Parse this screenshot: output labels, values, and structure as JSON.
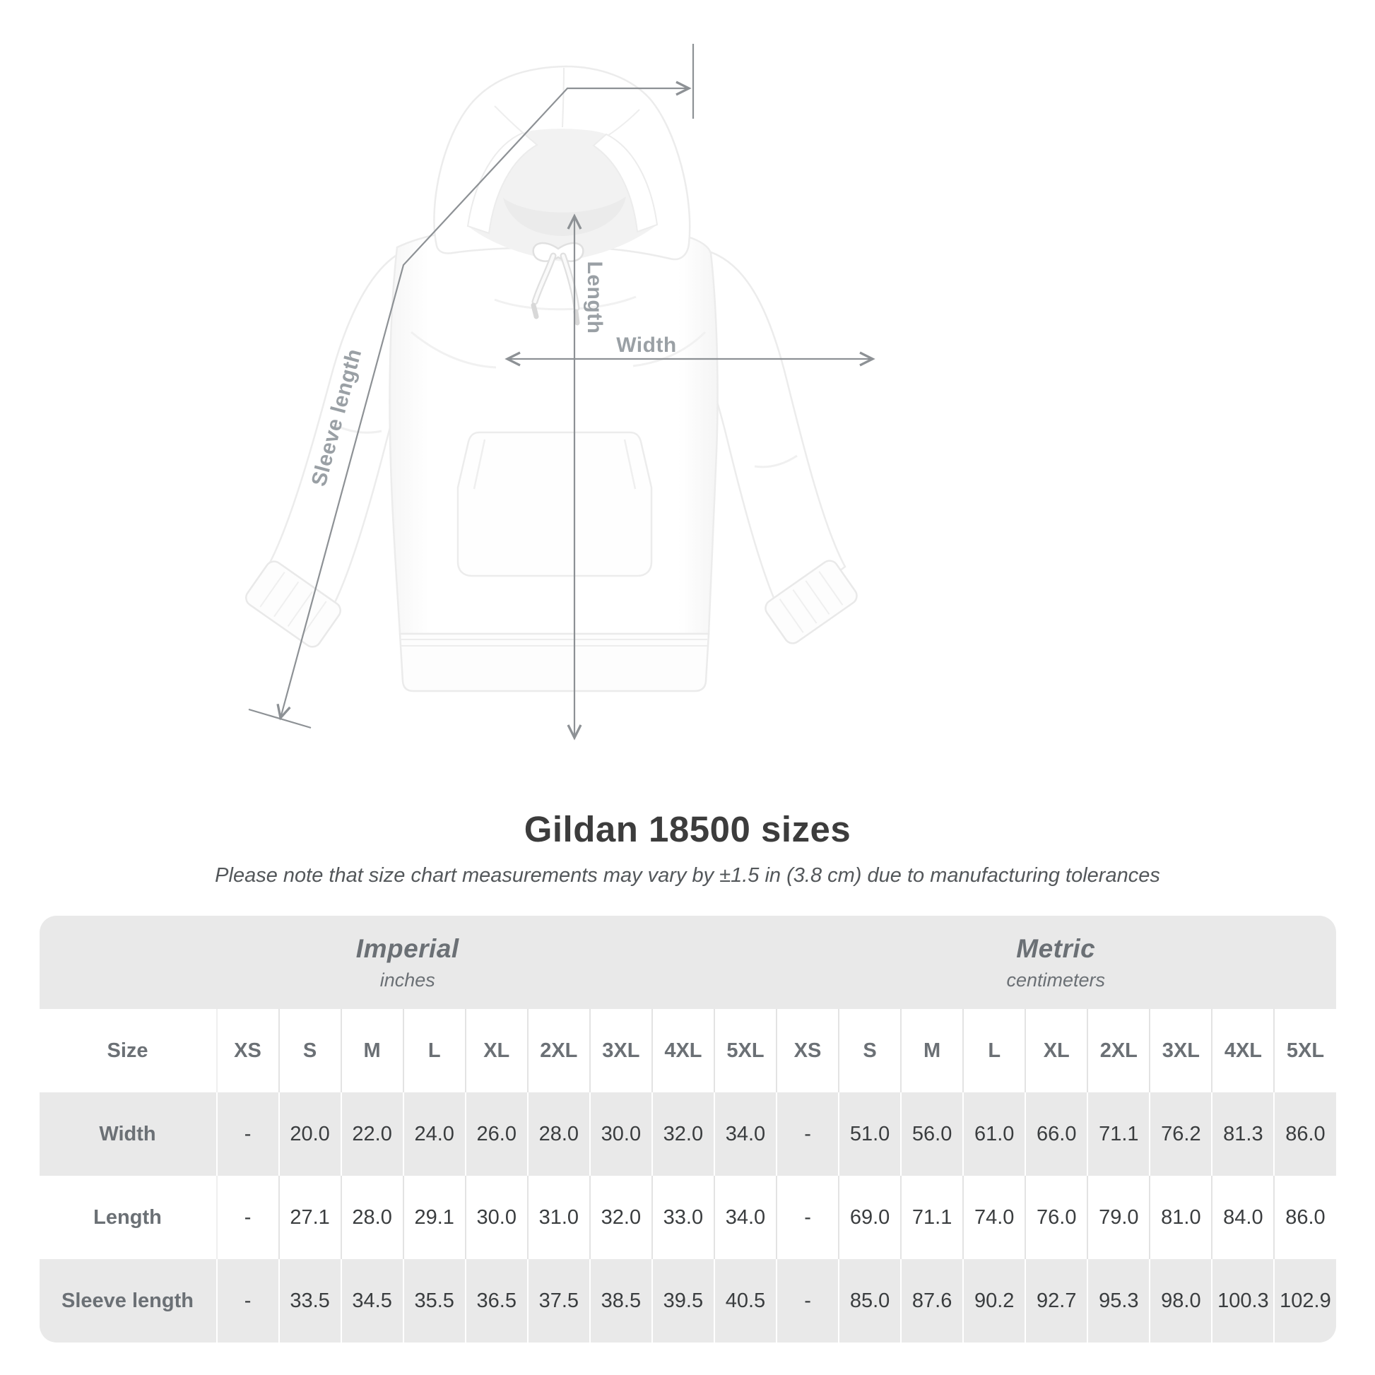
{
  "header": {
    "title": "Gildan 18500 sizes",
    "note": "Please note that size chart measurements may vary by ±1.5 in (3.8 cm) due to manufacturing tolerances"
  },
  "diagram": {
    "length_label": "Length",
    "width_label": "Width",
    "sleeve_label": "Sleeve length"
  },
  "table": {
    "size_column_header": "Size",
    "unit_groups": [
      {
        "name": "Imperial",
        "unit": "inches"
      },
      {
        "name": "Metric",
        "unit": "centimeters"
      }
    ],
    "sizes": [
      "XS",
      "S",
      "M",
      "L",
      "XL",
      "2XL",
      "3XL",
      "4XL",
      "5XL"
    ],
    "rows": [
      {
        "label": "Width",
        "imperial": [
          "-",
          "20.0",
          "22.0",
          "24.0",
          "26.0",
          "28.0",
          "30.0",
          "32.0",
          "34.0"
        ],
        "metric": [
          "-",
          "51.0",
          "56.0",
          "61.0",
          "66.0",
          "71.1",
          "76.2",
          "81.3",
          "86.0"
        ]
      },
      {
        "label": "Length",
        "imperial": [
          "-",
          "27.1",
          "28.0",
          "29.1",
          "30.0",
          "31.0",
          "32.0",
          "33.0",
          "34.0"
        ],
        "metric": [
          "-",
          "69.0",
          "71.1",
          "74.0",
          "76.0",
          "79.0",
          "81.0",
          "84.0",
          "86.0"
        ]
      },
      {
        "label": "Sleeve length",
        "imperial": [
          "-",
          "33.5",
          "34.5",
          "35.5",
          "36.5",
          "37.5",
          "38.5",
          "39.5",
          "40.5"
        ],
        "metric": [
          "-",
          "85.0",
          "87.6",
          "90.2",
          "92.7",
          "95.3",
          "98.0",
          "100.3",
          "102.9"
        ]
      }
    ]
  },
  "colors": {
    "band_gray": "#e9e9e9",
    "label_gray": "#6b7075",
    "value_dark": "#3a3d3f",
    "annotation_line": "#8d9195",
    "annotation_label": "#9aa0a5",
    "title_dark": "#3c3c3c"
  }
}
